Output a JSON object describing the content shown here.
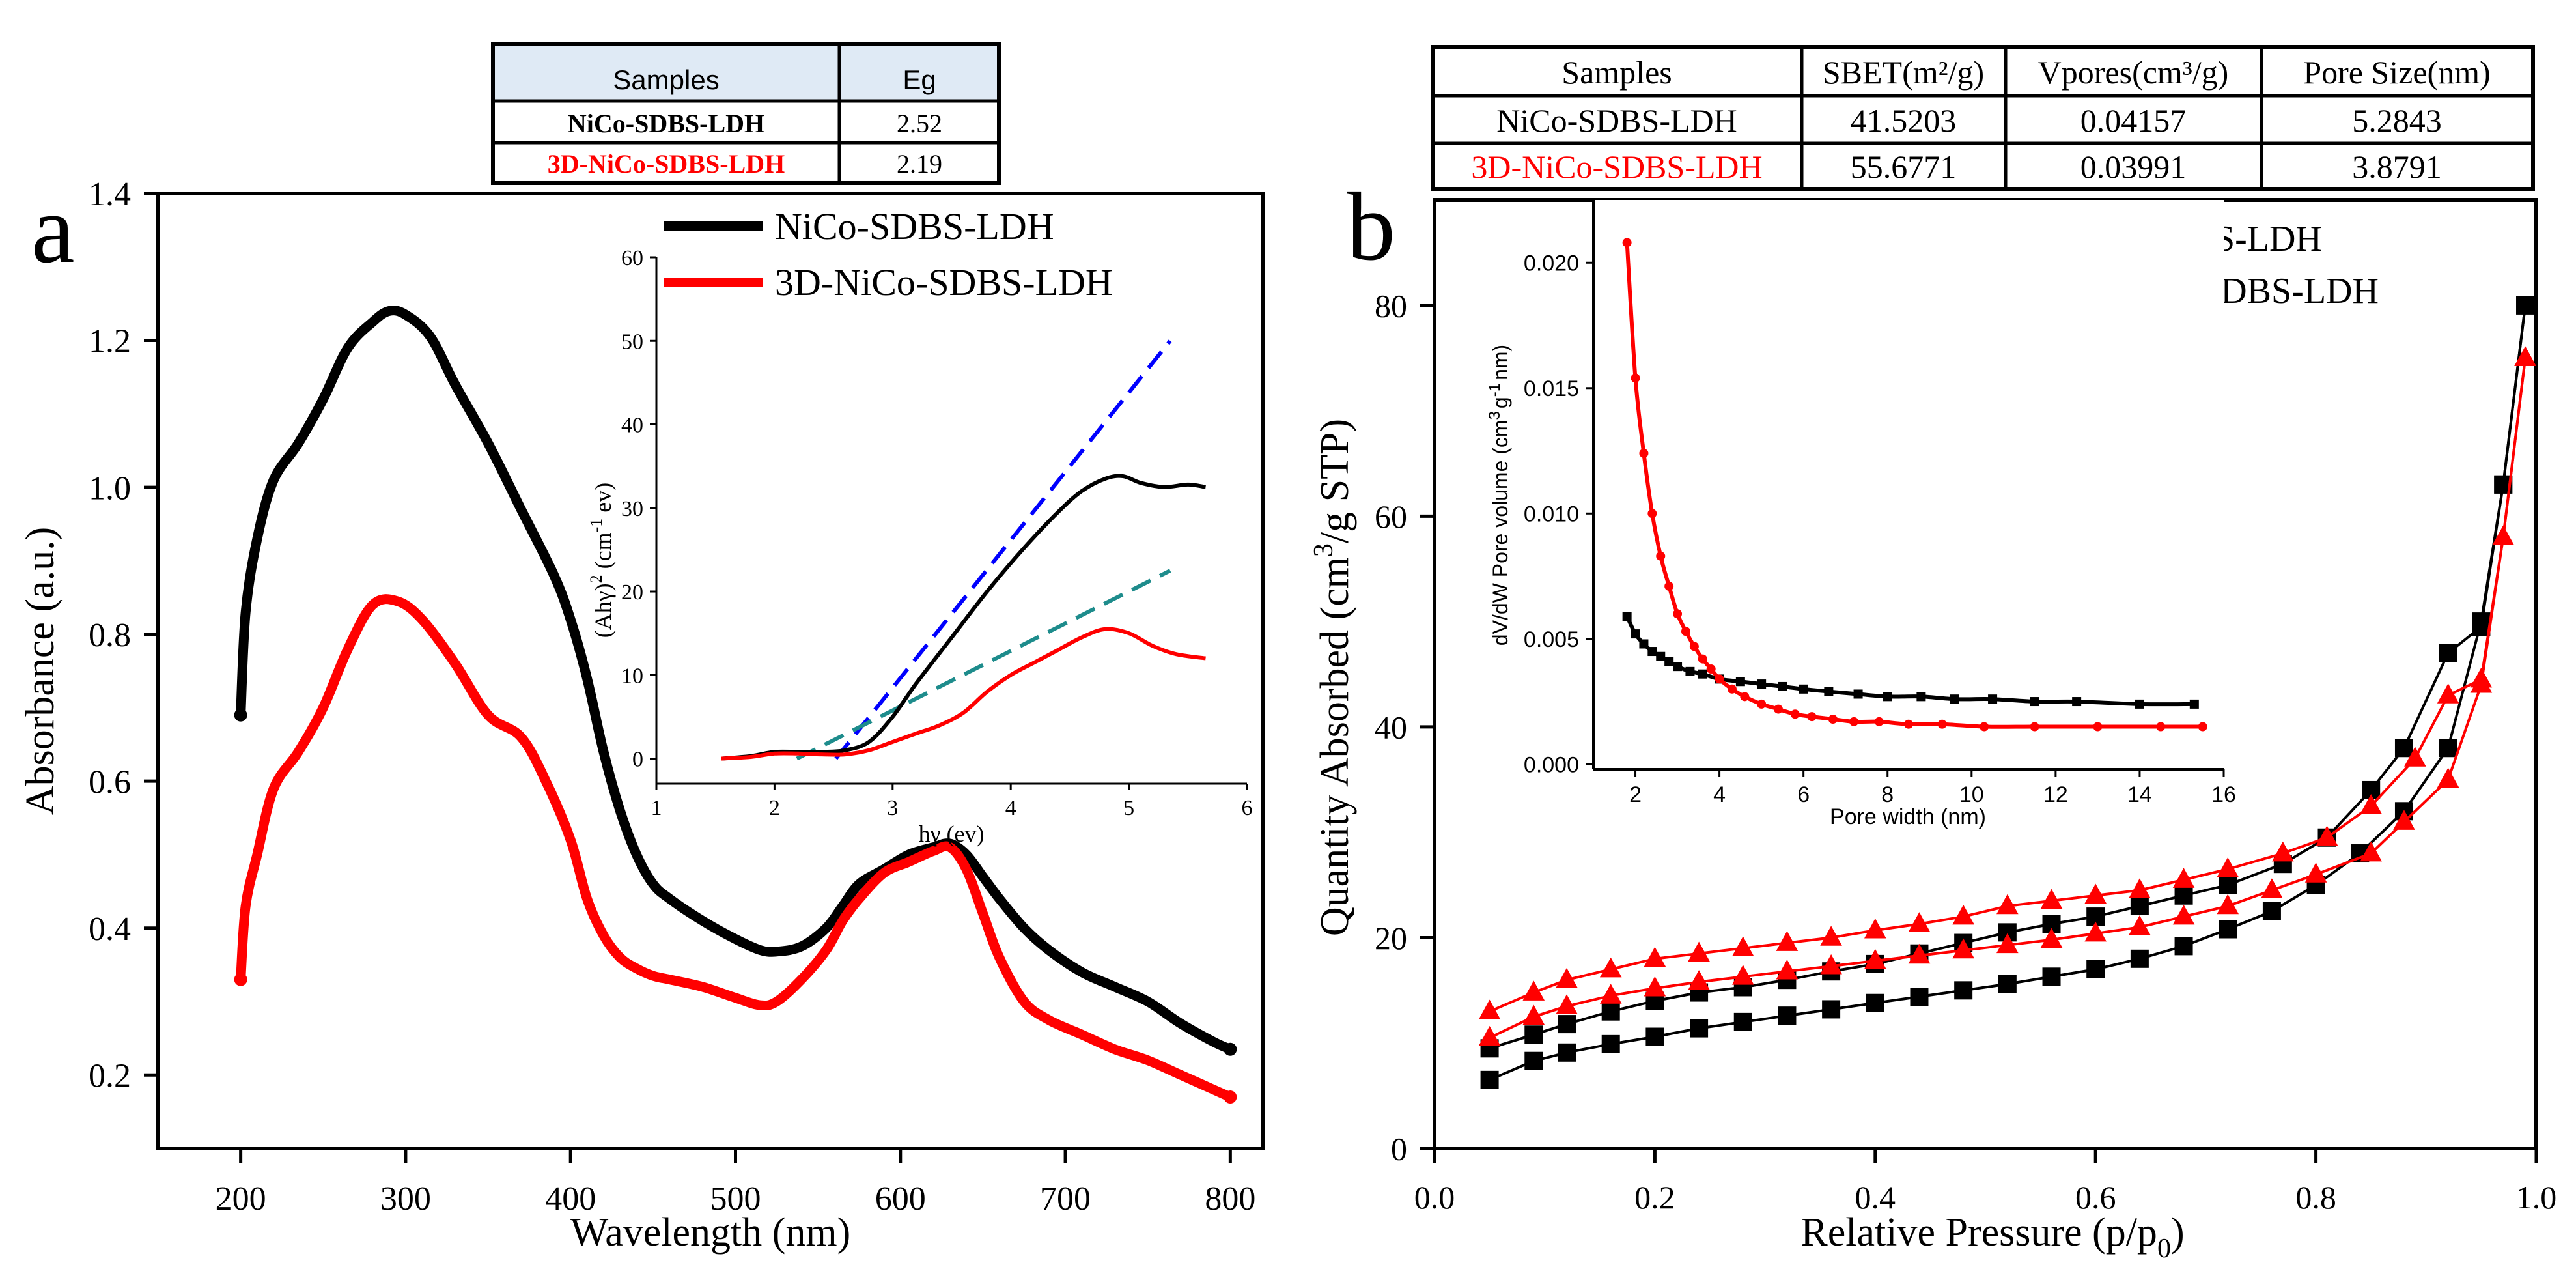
{
  "colors": {
    "black": "#000000",
    "red": "#ff0000",
    "blue": "#0000ff",
    "teal": "#1e8c8c",
    "table_header": "#dfeaf5"
  },
  "panel_a": {
    "letter": "a",
    "table": {
      "headers": [
        "Samples",
        "Eg"
      ],
      "rows": [
        {
          "sample": "NiCo-SDBS-LDH",
          "eg": "2.52",
          "color": "#000000"
        },
        {
          "sample": "3D-NiCo-SDBS-LDH",
          "eg": "2.19",
          "color": "#ff0000"
        }
      ]
    }
  },
  "panel_b": {
    "letter": "b",
    "table": {
      "headers": [
        "Samples",
        "SBET(m²/g)",
        "Vpores(cm³/g)",
        "Pore Size(nm)"
      ],
      "rows": [
        {
          "sample": "NiCo-SDBS-LDH",
          "sbet": "41.5203",
          "vpores": "0.04157",
          "pore": "5.2843",
          "color": "#000000"
        },
        {
          "sample": "3D-NiCo-SDBS-LDH",
          "sbet": "55.6771",
          "vpores": "0.03991",
          "pore": "3.8791",
          "color": "#ff0000"
        }
      ]
    }
  },
  "chart_data": [
    {
      "id": "uv",
      "type": "line",
      "xlabel": "Wavelength (nm)",
      "ylabel": "Absorbance (a.u.)",
      "xlim": [
        150,
        820
      ],
      "ylim": [
        0.1,
        1.4
      ],
      "xticks": [
        200,
        300,
        400,
        500,
        600,
        700,
        800
      ],
      "yticks": [
        0.2,
        0.4,
        0.6,
        0.8,
        1.0,
        1.2,
        1.4
      ],
      "ytick_labels": [
        "0.2",
        "0.4",
        "0.6",
        "0.8",
        "1.0",
        "1.2",
        "1.4"
      ],
      "series": [
        {
          "name": "NiCo-SDBS-LDH",
          "color": "#000000",
          "x": [
            200,
            203,
            210,
            220,
            235,
            250,
            265,
            280,
            290,
            300,
            315,
            330,
            350,
            370,
            390,
            400,
            410,
            420,
            430,
            440,
            450,
            460,
            480,
            500,
            515,
            525,
            540,
            555,
            565,
            575,
            590,
            605,
            620,
            630,
            640,
            650,
            660,
            675,
            690,
            710,
            730,
            750,
            770,
            790,
            800
          ],
          "y": [
            0.69,
            0.83,
            0.93,
            1.01,
            1.06,
            1.12,
            1.19,
            1.225,
            1.24,
            1.235,
            1.205,
            1.14,
            1.06,
            0.97,
            0.88,
            0.82,
            0.74,
            0.64,
            0.56,
            0.5,
            0.46,
            0.44,
            0.41,
            0.385,
            0.37,
            0.368,
            0.375,
            0.4,
            0.43,
            0.46,
            0.48,
            0.5,
            0.51,
            0.515,
            0.5,
            0.47,
            0.44,
            0.4,
            0.37,
            0.34,
            0.32,
            0.3,
            0.27,
            0.245,
            0.235
          ]
        },
        {
          "name": "3D-NiCo-SDBS-LDH",
          "color": "#ff0000",
          "x": [
            200,
            203,
            210,
            220,
            235,
            250,
            265,
            280,
            295,
            310,
            330,
            350,
            370,
            385,
            400,
            410,
            420,
            430,
            440,
            450,
            460,
            480,
            500,
            515,
            525,
            540,
            555,
            565,
            575,
            590,
            605,
            620,
            630,
            640,
            650,
            660,
            675,
            690,
            710,
            730,
            750,
            770,
            790,
            800
          ],
          "y": [
            0.33,
            0.43,
            0.5,
            0.59,
            0.64,
            0.7,
            0.78,
            0.84,
            0.845,
            0.82,
            0.76,
            0.69,
            0.66,
            0.6,
            0.52,
            0.44,
            0.39,
            0.36,
            0.345,
            0.335,
            0.33,
            0.32,
            0.305,
            0.295,
            0.3,
            0.33,
            0.37,
            0.41,
            0.44,
            0.475,
            0.49,
            0.505,
            0.51,
            0.48,
            0.42,
            0.36,
            0.3,
            0.275,
            0.255,
            0.235,
            0.22,
            0.2,
            0.18,
            0.17
          ]
        }
      ]
    },
    {
      "id": "tauc",
      "type": "line",
      "xlabel": "hγ (ev)",
      "ylabel_parts": [
        "(Ahγ)",
        "2",
        " (cm",
        "-1",
        " ev)"
      ],
      "xlim": [
        1,
        6
      ],
      "ylim": [
        -3,
        60
      ],
      "xticks": [
        1,
        2,
        3,
        4,
        5,
        6
      ],
      "yticks": [
        0,
        10,
        20,
        30,
        40,
        50,
        60
      ],
      "series": [
        {
          "name": "NiCo-SDBS-LDH",
          "color": "#000000",
          "x": [
            1.55,
            1.8,
            2.0,
            2.2,
            2.4,
            2.6,
            2.8,
            3.0,
            3.2,
            3.5,
            3.8,
            4.1,
            4.4,
            4.6,
            4.8,
            4.95,
            5.1,
            5.3,
            5.5,
            5.65
          ],
          "y": [
            0,
            0.3,
            0.8,
            0.8,
            0.8,
            1.0,
            2.0,
            5.0,
            9.0,
            14.5,
            20.0,
            25.0,
            29.5,
            32.0,
            33.5,
            33.8,
            33.0,
            32.5,
            32.8,
            32.5
          ]
        },
        {
          "name": "3D-NiCo-SDBS-LDH",
          "color": "#ff0000",
          "x": [
            1.55,
            1.8,
            2.0,
            2.2,
            2.4,
            2.6,
            2.8,
            3.0,
            3.2,
            3.4,
            3.6,
            3.8,
            4.0,
            4.2,
            4.4,
            4.6,
            4.8,
            5.0,
            5.2,
            5.4,
            5.65
          ],
          "y": [
            0,
            0.2,
            0.6,
            0.6,
            0.5,
            0.5,
            1.0,
            2.0,
            3.0,
            4.0,
            5.5,
            8.0,
            10.0,
            11.5,
            13.0,
            14.5,
            15.5,
            15.0,
            13.5,
            12.5,
            12.0
          ]
        }
      ],
      "fit_lines": [
        {
          "name": "fit-nico",
          "color": "#0000ff",
          "x": [
            2.52,
            5.35
          ],
          "y": [
            0,
            50
          ]
        },
        {
          "name": "fit-3d-nico",
          "color": "#1e8c8c",
          "x": [
            2.19,
            5.35
          ],
          "y": [
            0,
            22.5
          ]
        }
      ]
    },
    {
      "id": "bet",
      "type": "line",
      "xlabel_parts": [
        "Relative Pressure (p/p",
        "0",
        ")"
      ],
      "ylabel_parts": [
        "Quantity Absorbed (cm",
        "3",
        "/g STP)"
      ],
      "xlim": [
        0.0,
        1.0
      ],
      "ylim": [
        0,
        90
      ],
      "xticks": [
        0.0,
        0.2,
        0.4,
        0.6,
        0.8,
        1.0
      ],
      "xtick_labels": [
        "0.0",
        "0.2",
        "0.4",
        "0.6",
        "0.8",
        "1.0"
      ],
      "yticks": [
        0,
        20,
        40,
        60,
        80
      ],
      "series": [
        {
          "name": "NiCo-SDBS-LDH",
          "color": "#000000",
          "marker": "square",
          "adsorption_x": [
            0.05,
            0.09,
            0.12,
            0.16,
            0.2,
            0.24,
            0.28,
            0.32,
            0.36,
            0.4,
            0.44,
            0.48,
            0.52,
            0.56,
            0.6,
            0.64,
            0.68,
            0.72,
            0.76,
            0.8,
            0.84,
            0.88,
            0.92,
            0.95,
            0.97,
            0.99
          ],
          "adsorption_y": [
            6.5,
            8.3,
            9.1,
            9.9,
            10.6,
            11.4,
            12.0,
            12.6,
            13.2,
            13.8,
            14.4,
            15.0,
            15.6,
            16.3,
            17.0,
            18.0,
            19.2,
            20.8,
            22.5,
            25.0,
            28.0,
            32.0,
            38.0,
            50.0,
            63.0,
            80.0
          ],
          "desorption_x": [
            0.99,
            0.97,
            0.95,
            0.92,
            0.88,
            0.85,
            0.81,
            0.77,
            0.72,
            0.68,
            0.64,
            0.6,
            0.56,
            0.52,
            0.48,
            0.44,
            0.4,
            0.36,
            0.32,
            0.28,
            0.24,
            0.2,
            0.16,
            0.12,
            0.09,
            0.05
          ],
          "desorption_y": [
            80.0,
            63.0,
            49.5,
            47.0,
            38.0,
            34.0,
            29.5,
            27.0,
            25.0,
            24.0,
            23.0,
            22.0,
            21.3,
            20.5,
            19.5,
            18.5,
            17.5,
            16.8,
            16.0,
            15.3,
            14.8,
            14.0,
            13.0,
            11.8,
            10.8,
            9.5
          ]
        },
        {
          "name": "3D-NiCo-SDBS-LDH",
          "color": "#ff0000",
          "marker": "triangle",
          "adsorption_x": [
            0.05,
            0.09,
            0.12,
            0.16,
            0.2,
            0.24,
            0.28,
            0.32,
            0.36,
            0.4,
            0.44,
            0.48,
            0.52,
            0.56,
            0.6,
            0.64,
            0.68,
            0.72,
            0.76,
            0.8,
            0.85,
            0.88,
            0.92,
            0.95,
            0.97,
            0.99
          ],
          "adsorption_y": [
            10.5,
            12.5,
            13.5,
            14.5,
            15.2,
            15.8,
            16.3,
            16.8,
            17.3,
            17.8,
            18.3,
            18.8,
            19.3,
            19.8,
            20.4,
            21.0,
            22.0,
            23.0,
            24.5,
            26.0,
            28.0,
            31.0,
            35.0,
            44.0,
            58.0,
            75.0
          ],
          "desorption_x": [
            0.99,
            0.97,
            0.95,
            0.92,
            0.89,
            0.85,
            0.81,
            0.77,
            0.72,
            0.68,
            0.64,
            0.6,
            0.56,
            0.52,
            0.48,
            0.44,
            0.4,
            0.36,
            0.32,
            0.28,
            0.24,
            0.2,
            0.16,
            0.12,
            0.09,
            0.05
          ],
          "desorption_y": [
            75.0,
            58.0,
            44.5,
            43.0,
            37.0,
            32.5,
            29.5,
            28.0,
            26.5,
            25.5,
            24.5,
            24.0,
            23.5,
            23.0,
            22.0,
            21.3,
            20.7,
            20.0,
            19.5,
            19.0,
            18.5,
            18.0,
            17.0,
            16.0,
            14.8,
            13.0
          ]
        }
      ]
    },
    {
      "id": "pore",
      "type": "line",
      "xlabel": "Pore width (nm)",
      "ylabel_parts": [
        "dV/dW Pore volume (cm",
        "3",
        "g",
        "-1",
        "nm)"
      ],
      "xlim": [
        1,
        16
      ],
      "ylim": [
        -0.0002,
        0.0225
      ],
      "xticks": [
        2,
        4,
        6,
        8,
        10,
        12,
        14,
        16
      ],
      "yticks": [
        0.0,
        0.005,
        0.01,
        0.015,
        0.02
      ],
      "ytick_labels": [
        "0.000",
        "0.005",
        "0.010",
        "0.015",
        "0.020"
      ],
      "series": [
        {
          "name": "NiCo-SDBS-LDH",
          "color": "#000000",
          "marker": "square",
          "x": [
            1.8,
            2.0,
            2.2,
            2.4,
            2.6,
            2.8,
            3.0,
            3.3,
            3.6,
            4.0,
            4.5,
            5.0,
            5.5,
            6.0,
            6.6,
            7.3,
            8.0,
            8.8,
            9.6,
            10.5,
            11.5,
            12.5,
            14.0,
            15.3
          ],
          "y": [
            0.0059,
            0.0052,
            0.0048,
            0.0045,
            0.0043,
            0.0041,
            0.0039,
            0.0037,
            0.0036,
            0.0034,
            0.0033,
            0.0032,
            0.0031,
            0.003,
            0.0029,
            0.0028,
            0.0027,
            0.0027,
            0.0026,
            0.0026,
            0.0025,
            0.0025,
            0.0024,
            0.0024
          ]
        },
        {
          "name": "3D-NiCo-SDBS-LDH",
          "color": "#ff0000",
          "marker": "circle",
          "x": [
            1.8,
            2.0,
            2.2,
            2.4,
            2.6,
            2.8,
            3.0,
            3.2,
            3.4,
            3.6,
            3.8,
            4.0,
            4.3,
            4.6,
            5.0,
            5.4,
            5.8,
            6.2,
            6.7,
            7.2,
            7.8,
            8.5,
            9.3,
            10.3,
            11.5,
            13.0,
            14.5,
            15.5
          ],
          "y": [
            0.0208,
            0.0154,
            0.0124,
            0.01,
            0.0083,
            0.0071,
            0.006,
            0.0053,
            0.0047,
            0.0042,
            0.0038,
            0.0034,
            0.003,
            0.0027,
            0.0024,
            0.0022,
            0.002,
            0.0019,
            0.0018,
            0.0017,
            0.0017,
            0.0016,
            0.0016,
            0.0015,
            0.0015,
            0.0015,
            0.0015,
            0.0015
          ]
        }
      ]
    }
  ]
}
